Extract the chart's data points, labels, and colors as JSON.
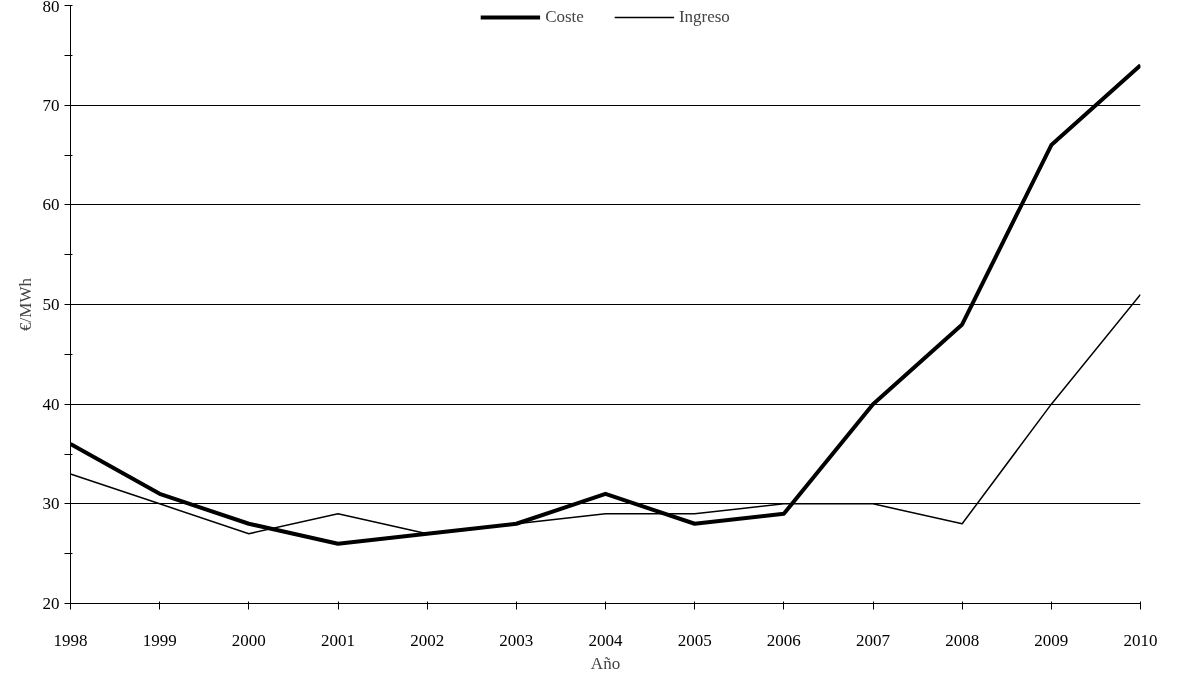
{
  "chart_data": {
    "type": "line",
    "xlabel": "Año",
    "ylabel": "€/MWh",
    "x": [
      1998,
      1999,
      2000,
      2001,
      2002,
      2003,
      2004,
      2005,
      2006,
      2007,
      2008,
      2009,
      2010
    ],
    "series": [
      {
        "name": "Coste",
        "color": "#000000",
        "values": [
          36,
          31,
          28,
          26,
          27,
          28,
          31,
          28,
          29,
          40,
          48,
          66,
          74
        ]
      },
      {
        "name": "Ingreso",
        "color": "#000000",
        "values": [
          33,
          30,
          27,
          29,
          27,
          28,
          29,
          29,
          30,
          30,
          28,
          40,
          51
        ]
      }
    ],
    "xlim": [
      1998,
      2010
    ],
    "xticks": [
      1998,
      1999,
      2000,
      2001,
      2002,
      2003,
      2004,
      2005,
      2006,
      2007,
      2008,
      2009,
      2010
    ],
    "ylim": [
      20,
      80
    ],
    "yticks": [
      20,
      {
        "value": 25,
        "label": null
      },
      30,
      {
        "value": 35,
        "label": null
      },
      40,
      {
        "value": 45,
        "label": null
      },
      50,
      {
        "value": 55,
        "label": null
      },
      60,
      {
        "value": 65,
        "label": null
      },
      70,
      {
        "value": 75,
        "label": null
      },
      80
    ],
    "grid": "y",
    "legend": "top",
    "marker": "none",
    "line_style": "solid"
  }
}
